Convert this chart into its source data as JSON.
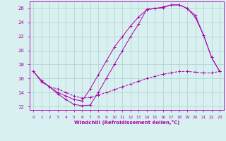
{
  "xlabel": "Windchill (Refroidissement éolien,°C)",
  "background_color": "#d8f0f0",
  "line_color": "#aa00aa",
  "grid_color": "#b0d0d0",
  "xlim": [
    -0.5,
    23.5
  ],
  "ylim": [
    11.5,
    27.0
  ],
  "xticks": [
    0,
    1,
    2,
    3,
    4,
    5,
    6,
    7,
    8,
    9,
    10,
    11,
    12,
    13,
    14,
    15,
    16,
    17,
    18,
    19,
    20,
    21,
    22,
    23
  ],
  "yticks": [
    12,
    14,
    16,
    18,
    20,
    22,
    24,
    26
  ],
  "curve1_x": [
    0,
    1,
    2,
    3,
    4,
    5,
    6,
    7,
    8,
    9,
    10,
    11,
    12,
    13,
    14,
    15,
    16,
    17,
    18,
    19,
    20,
    21,
    22,
    23
  ],
  "curve1_y": [
    17.0,
    15.7,
    14.8,
    13.8,
    13.0,
    12.3,
    12.1,
    12.2,
    14.0,
    16.0,
    18.0,
    20.0,
    22.0,
    23.8,
    25.9,
    26.0,
    26.1,
    26.5,
    26.5,
    26.0,
    25.0,
    22.2,
    19.0,
    17.0
  ],
  "curve2_x": [
    0,
    1,
    2,
    3,
    4,
    5,
    6,
    7,
    8,
    9,
    10,
    11,
    12,
    13,
    14,
    15,
    16,
    17,
    18,
    19,
    20,
    21,
    22,
    23
  ],
  "curve2_y": [
    17.0,
    15.5,
    14.8,
    14.0,
    13.5,
    13.0,
    12.8,
    14.5,
    16.5,
    18.5,
    20.5,
    22.0,
    23.5,
    24.8,
    25.8,
    26.0,
    26.2,
    26.5,
    26.5,
    26.0,
    24.7,
    22.2,
    19.0,
    17.0
  ],
  "curve3_x": [
    2,
    3,
    4,
    5,
    6,
    7,
    8,
    9,
    10,
    11,
    12,
    13,
    14,
    15,
    16,
    17,
    18,
    19,
    20,
    21,
    22,
    23
  ],
  "curve3_y": [
    14.8,
    14.5,
    14.0,
    13.5,
    13.2,
    13.3,
    13.6,
    14.0,
    14.4,
    14.8,
    15.2,
    15.6,
    16.0,
    16.3,
    16.6,
    16.8,
    17.0,
    17.0,
    16.9,
    16.8,
    16.8,
    17.0
  ]
}
